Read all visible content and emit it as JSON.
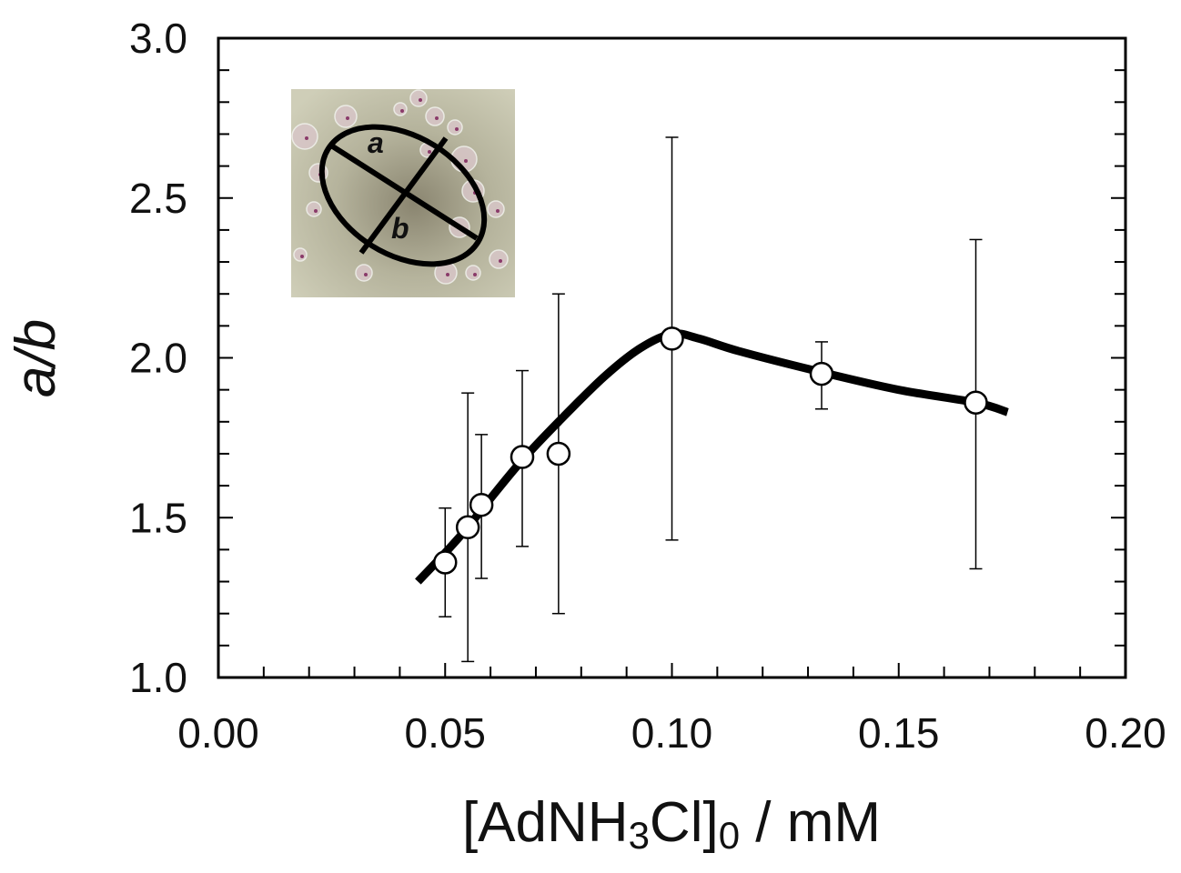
{
  "chart_data": {
    "type": "scatter",
    "title": "",
    "xlabel": {
      "prefix": "[AdNH",
      "sub1": "3",
      "mid": "Cl]",
      "sub2": "0",
      "suffix": " / mM"
    },
    "ylabel": "a/b",
    "xlim": [
      0.0,
      0.2
    ],
    "ylim": [
      1.0,
      3.0
    ],
    "x_ticks": [
      "0.00",
      "0.05",
      "0.10",
      "0.15",
      "0.20"
    ],
    "y_ticks": [
      "1.0",
      "1.5",
      "2.0",
      "2.5",
      "3.0"
    ],
    "grid": false,
    "series": [
      {
        "name": "a/b data",
        "marker": "open-circle",
        "points": [
          {
            "x": 0.05,
            "y": 1.36,
            "err_low": 1.19,
            "err_high": 1.53
          },
          {
            "x": 0.055,
            "y": 1.47,
            "err_low": 1.05,
            "err_high": 1.89
          },
          {
            "x": 0.058,
            "y": 1.54,
            "err_low": 1.31,
            "err_high": 1.76
          },
          {
            "x": 0.067,
            "y": 1.69,
            "err_low": 1.41,
            "err_high": 1.96
          },
          {
            "x": 0.075,
            "y": 1.7,
            "err_low": 1.2,
            "err_high": 2.2
          },
          {
            "x": 0.1,
            "y": 2.06,
            "err_low": 1.43,
            "err_high": 2.69
          },
          {
            "x": 0.133,
            "y": 1.95,
            "err_low": 1.84,
            "err_high": 2.05
          },
          {
            "x": 0.167,
            "y": 1.86,
            "err_low": 1.34,
            "err_high": 2.37
          }
        ]
      },
      {
        "name": "guide curve",
        "type": "line",
        "points": [
          [
            0.044,
            1.3
          ],
          [
            0.05,
            1.39
          ],
          [
            0.055,
            1.47
          ],
          [
            0.06,
            1.56
          ],
          [
            0.067,
            1.68
          ],
          [
            0.075,
            1.8
          ],
          [
            0.085,
            1.94
          ],
          [
            0.093,
            2.03
          ],
          [
            0.1,
            2.075
          ],
          [
            0.106,
            2.06
          ],
          [
            0.115,
            2.02
          ],
          [
            0.133,
            1.955
          ],
          [
            0.15,
            1.9
          ],
          [
            0.167,
            1.86
          ],
          [
            0.174,
            1.83
          ]
        ]
      }
    ],
    "inset": {
      "label_a": "a",
      "label_b": "b"
    }
  }
}
